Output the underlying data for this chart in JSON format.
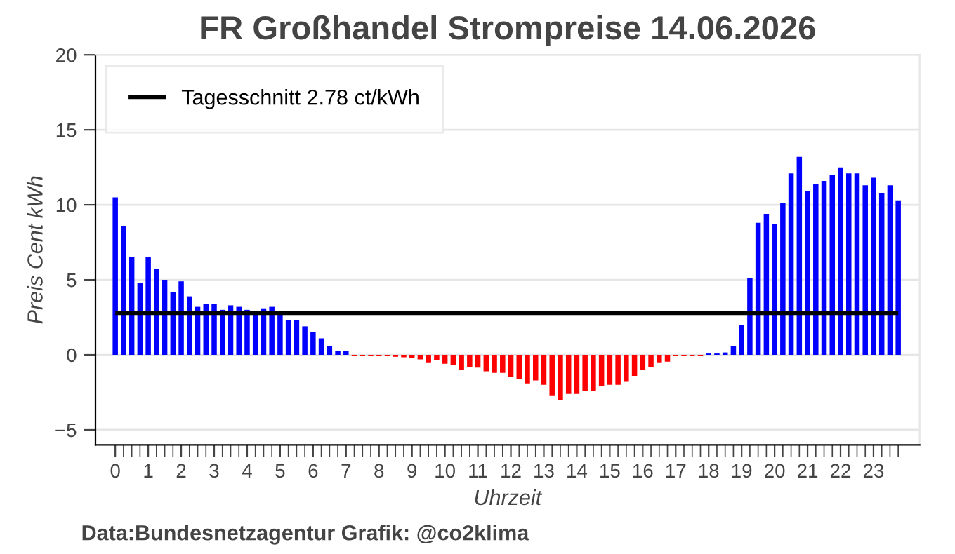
{
  "chart_data": {
    "type": "bar",
    "title": "FR Großhandel Strompreise 14.06.2026",
    "xlabel": "Uhrzeit",
    "ylabel": "Preis Cent kWh",
    "x": [
      0,
      0.25,
      0.5,
      0.75,
      1,
      1.25,
      1.5,
      1.75,
      2,
      2.25,
      2.5,
      2.75,
      3,
      3.25,
      3.5,
      3.75,
      4,
      4.25,
      4.5,
      4.75,
      5,
      5.25,
      5.5,
      5.75,
      6,
      6.25,
      6.5,
      6.75,
      7,
      7.25,
      7.5,
      7.75,
      8,
      8.25,
      8.5,
      8.75,
      9,
      9.25,
      9.5,
      9.75,
      10,
      10.25,
      10.5,
      10.75,
      11,
      11.25,
      11.5,
      11.75,
      12,
      12.25,
      12.5,
      12.75,
      13,
      13.25,
      13.5,
      13.75,
      14,
      14.25,
      14.5,
      14.75,
      15,
      15.25,
      15.5,
      15.75,
      16,
      16.25,
      16.5,
      16.75,
      17,
      17.25,
      17.5,
      17.75,
      18,
      18.25,
      18.5,
      18.75,
      19,
      19.25,
      19.5,
      19.75,
      20,
      20.25,
      20.5,
      20.75,
      21,
      21.25,
      21.5,
      21.75,
      22,
      22.25,
      22.5,
      22.75,
      23,
      23.25,
      23.5,
      23.75
    ],
    "values": [
      10.5,
      8.6,
      6.5,
      4.8,
      6.5,
      5.7,
      5.0,
      4.2,
      4.9,
      3.9,
      3.2,
      3.4,
      3.4,
      3.0,
      3.3,
      3.2,
      3.0,
      2.9,
      3.1,
      3.2,
      2.8,
      2.3,
      2.3,
      1.9,
      1.5,
      1.1,
      0.6,
      0.25,
      0.25,
      -0.06,
      -0.06,
      -0.06,
      -0.09,
      -0.09,
      -0.13,
      -0.16,
      -0.2,
      -0.3,
      -0.5,
      -0.35,
      -0.6,
      -0.7,
      -1.0,
      -0.8,
      -0.85,
      -1.1,
      -1.2,
      -1.2,
      -1.45,
      -1.6,
      -1.9,
      -1.7,
      -2.0,
      -2.7,
      -3.0,
      -2.6,
      -2.6,
      -2.4,
      -2.4,
      -2.1,
      -2.0,
      -2.0,
      -1.8,
      -1.4,
      -1.0,
      -0.8,
      -0.5,
      -0.45,
      -0.09,
      -0.06,
      -0.06,
      -0.06,
      0.09,
      0.09,
      0.16,
      0.6,
      2.0,
      5.1,
      8.8,
      9.4,
      8.7,
      10.1,
      12.1,
      13.2,
      10.9,
      11.4,
      11.6,
      12.0,
      12.5,
      12.1,
      12.1,
      11.3,
      11.8,
      10.8,
      11.3,
      10.3
    ],
    "colors": [
      "#0000ff",
      "#0000ff",
      "#0000ff",
      "#0000ff",
      "#0000ff",
      "#0000ff",
      "#0000ff",
      "#0000ff",
      "#0000ff",
      "#0000ff",
      "#0000ff",
      "#0000ff",
      "#0000ff",
      "#0000ff",
      "#0000ff",
      "#0000ff",
      "#0000ff",
      "#0000ff",
      "#0000ff",
      "#0000ff",
      "#0000ff",
      "#0000ff",
      "#0000ff",
      "#0000ff",
      "#0000ff",
      "#0000ff",
      "#0000ff",
      "#0000ff",
      "#0000ff",
      "#ff0000",
      "#ff0000",
      "#ff0000",
      "#ff0000",
      "#ff0000",
      "#ff0000",
      "#ff0000",
      "#ff0000",
      "#ff0000",
      "#ff0000",
      "#ff0000",
      "#ff0000",
      "#ff0000",
      "#ff0000",
      "#ff0000",
      "#ff0000",
      "#ff0000",
      "#ff0000",
      "#ff0000",
      "#ff0000",
      "#ff0000",
      "#ff0000",
      "#ff0000",
      "#ff0000",
      "#ff0000",
      "#ff0000",
      "#ff0000",
      "#ff0000",
      "#ff0000",
      "#ff0000",
      "#ff0000",
      "#ff0000",
      "#ff0000",
      "#ff0000",
      "#ff0000",
      "#ff0000",
      "#ff0000",
      "#ff0000",
      "#ff0000",
      "#ff0000",
      "#ff0000",
      "#ff0000",
      "#ff0000",
      "#0000ff",
      "#0000ff",
      "#0000ff",
      "#0000ff",
      "#0000ff",
      "#0000ff",
      "#0000ff",
      "#0000ff",
      "#0000ff",
      "#0000ff",
      "#0000ff",
      "#0000ff",
      "#0000ff",
      "#0000ff",
      "#0000ff",
      "#0000ff",
      "#0000ff",
      "#0000ff",
      "#0000ff",
      "#0000ff",
      "#0000ff",
      "#0000ff",
      "#0000ff",
      "#0000ff"
    ],
    "xlim": [
      -0.6,
      24.4
    ],
    "ylim": [
      -6,
      20
    ],
    "xticks": [
      0,
      1,
      2,
      3,
      4,
      5,
      6,
      7,
      8,
      9,
      10,
      11,
      12,
      13,
      14,
      15,
      16,
      17,
      18,
      19,
      20,
      21,
      22,
      23
    ],
    "yticks": [
      {
        "value": -5,
        "label": "−5"
      },
      0,
      5,
      10,
      15,
      20
    ],
    "ref_lines": [
      {
        "axis": "y",
        "value": 2.78,
        "label": "Tagesschnitt 2.78 ct/kWh",
        "color": "#000000"
      }
    ],
    "grid": "y",
    "legend": "top left",
    "annotations": [
      "Data:Bundesnetzagentur Grafik: @co2klima"
    ]
  }
}
